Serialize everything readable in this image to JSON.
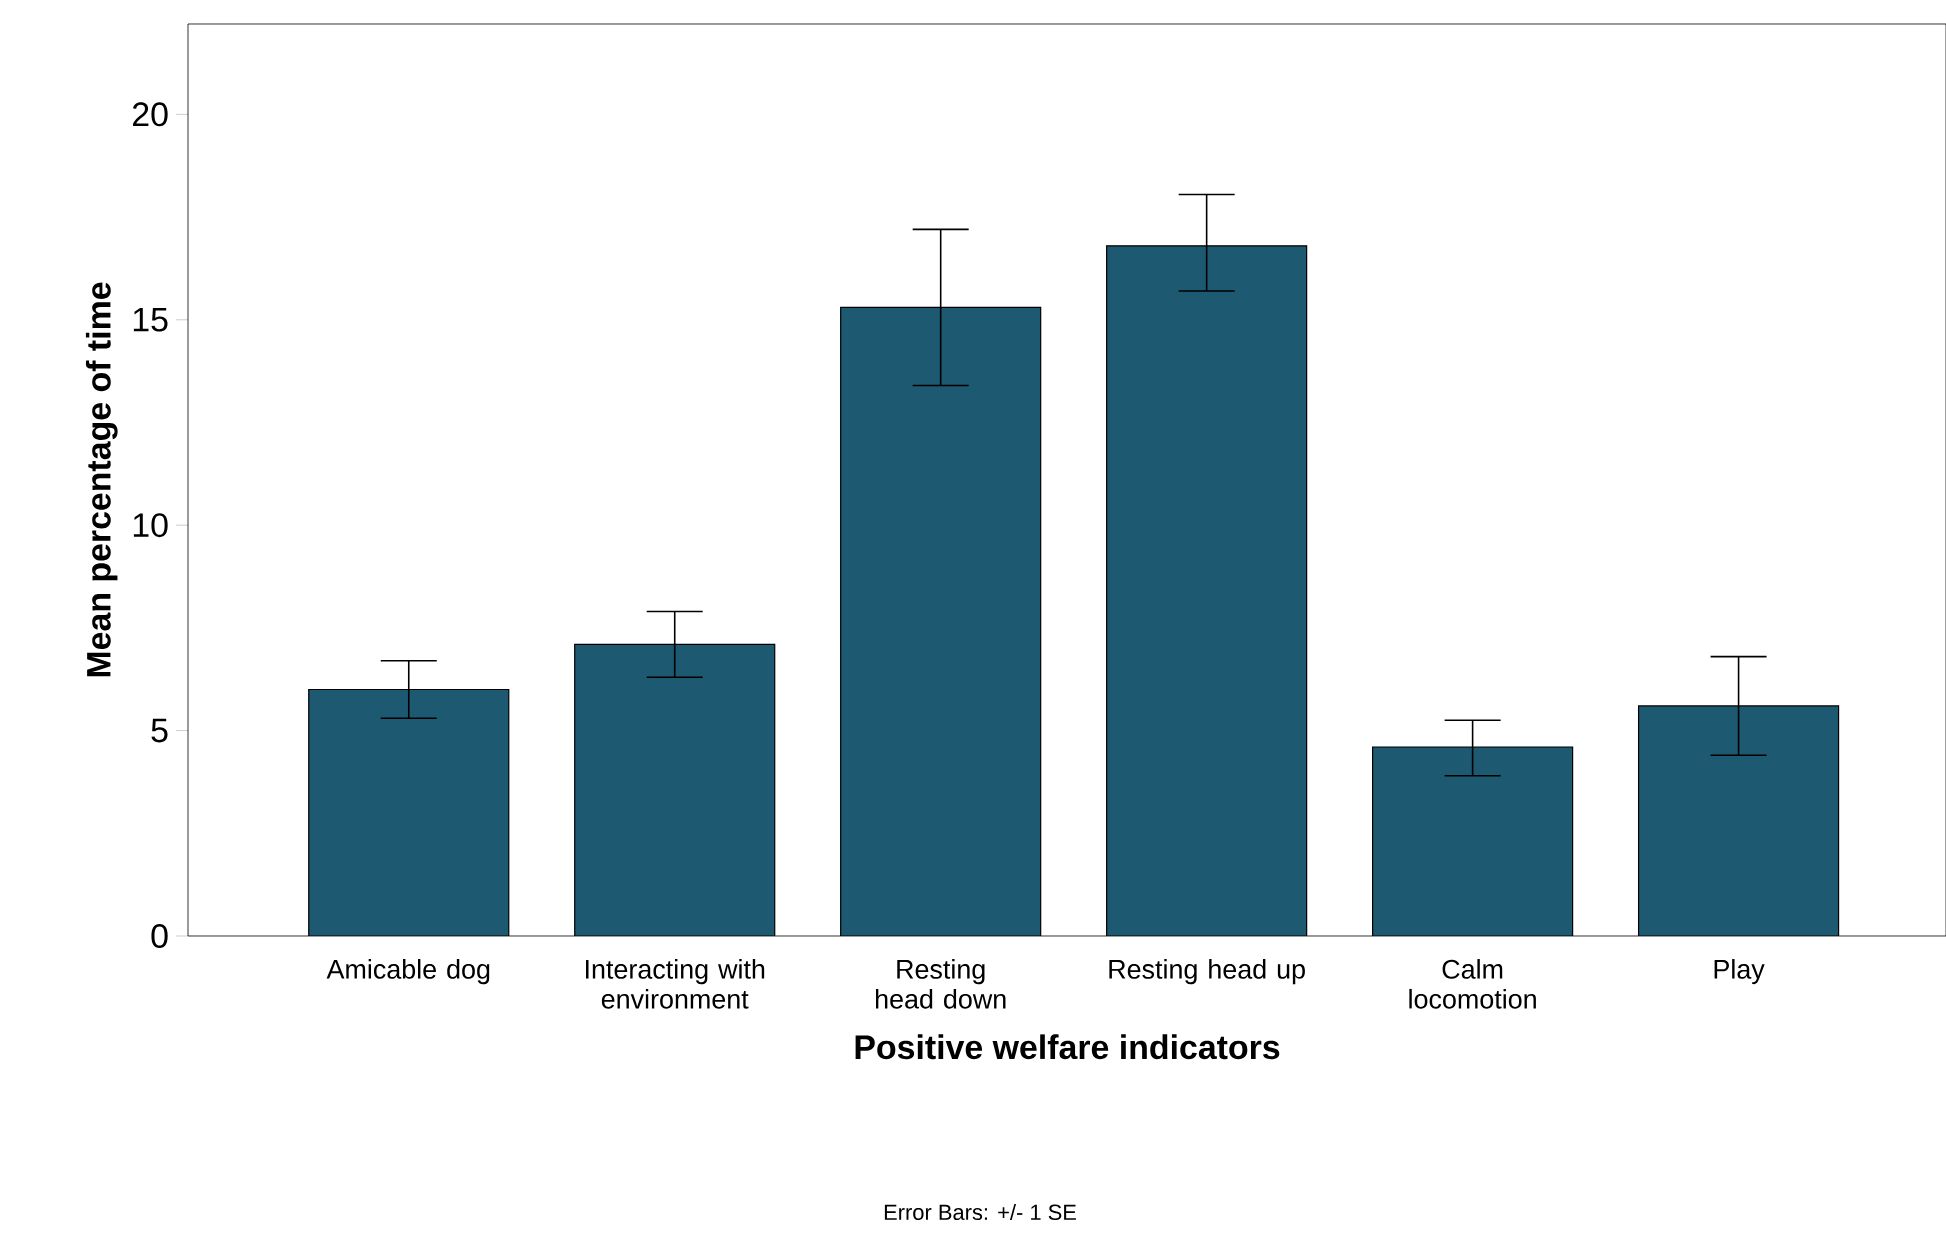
{
  "chart_data": {
    "type": "bar",
    "xlabel": "Positive welfare indicators",
    "ylabel": "Mean percentage of time",
    "categories": [
      "Amicable dog",
      "Interacting with environment",
      "Resting head down",
      "Resting head up",
      "Calm locomotion",
      "Play"
    ],
    "values": [
      6.0,
      7.1,
      15.3,
      16.8,
      4.6,
      5.6
    ],
    "errors": [
      [
        5.3,
        6.7
      ],
      [
        6.3,
        7.9
      ],
      [
        13.4,
        17.2
      ],
      [
        15.7,
        18.05
      ],
      [
        3.9,
        5.25
      ],
      [
        4.4,
        6.8
      ]
    ],
    "color": "#1d5a72",
    "ylim": [
      0,
      22.2
    ],
    "yticks": [
      0,
      5,
      10,
      15,
      20
    ],
    "annotations": [
      "Error Bars: +/- 1 SE"
    ]
  }
}
